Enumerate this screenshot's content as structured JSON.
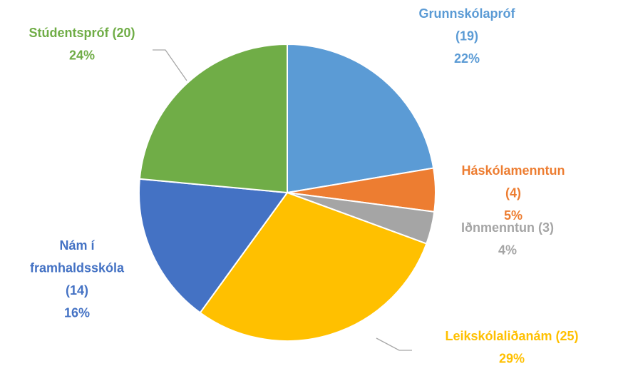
{
  "chart_data": {
    "type": "pie",
    "categories": [
      "Grunnskólapróf",
      "Háskólamenntun",
      "Iðnmenntun",
      "Leikskólaliðanám",
      "Nám í framhaldsskóla",
      "Stúdentspróf"
    ],
    "values": [
      19,
      4,
      3,
      25,
      14,
      20
    ],
    "value_labels": [
      "(19)",
      "(4)",
      "(3)",
      "(25)",
      "(14)",
      "(20)"
    ],
    "percentages": [
      22,
      5,
      4,
      29,
      16,
      24
    ],
    "percentage_labels": [
      "22%",
      "5%",
      "4%",
      "29%",
      "16%",
      "24%"
    ],
    "colors": [
      "#5b9bd5",
      "#ed7d31",
      "#a5a5a5",
      "#ffc000",
      "#4472c4",
      "#70ad47"
    ]
  }
}
